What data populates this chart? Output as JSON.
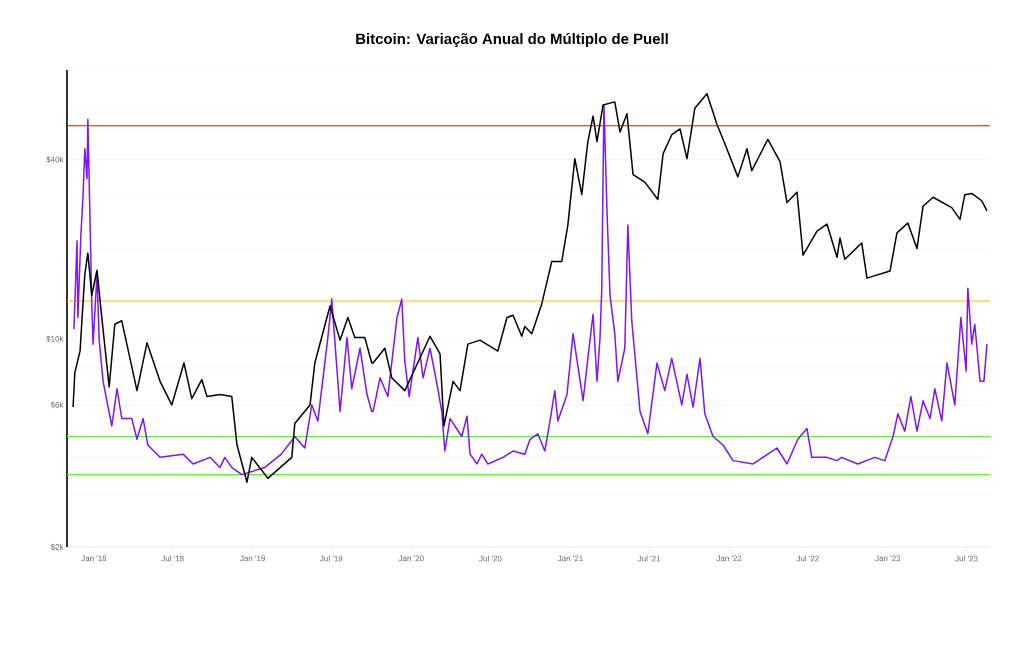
{
  "chart_data": {
    "type": "line",
    "title": "Bitcoin: Variação Anual do Múltiplo de Puell",
    "xlim": [
      "2017-10-31",
      "2023-08-24"
    ],
    "xticks": [
      {
        "value": "2018-01-01",
        "label": "Jan '18"
      },
      {
        "value": "2018-07-01",
        "label": "Jul '18"
      },
      {
        "value": "2019-01-01",
        "label": "Jan '19"
      },
      {
        "value": "2019-07-01",
        "label": "Jul '19"
      },
      {
        "value": "2020-01-01",
        "label": "Jan '20"
      },
      {
        "value": "2020-07-01",
        "label": "Jul '20"
      },
      {
        "value": "2021-01-01",
        "label": "Jan '21"
      },
      {
        "value": "2021-07-01",
        "label": "Jul '21"
      },
      {
        "value": "2022-01-01",
        "label": "Jan '22"
      },
      {
        "value": "2022-07-01",
        "label": "Jul '22"
      },
      {
        "value": "2023-01-01",
        "label": "Jan '23"
      },
      {
        "value": "2023-07-01",
        "label": "Jul '23"
      }
    ],
    "ylim": [
      2000,
      80000
    ],
    "log": "y",
    "grid": "y",
    "yticks": [
      {
        "value": 2000,
        "label": "$2k"
      },
      {
        "value": 3000,
        "label": null
      },
      {
        "value": 4000,
        "label": null
      },
      {
        "value": 5000,
        "label": null
      },
      {
        "value": 6000,
        "label": "$6k"
      },
      {
        "value": 8000,
        "label": null
      },
      {
        "value": 10000,
        "label": "$10k"
      },
      {
        "value": 20000,
        "label": null
      },
      {
        "value": 30000,
        "label": null
      },
      {
        "value": 40000,
        "label": "$40k"
      },
      {
        "value": 50000,
        "label": null
      },
      {
        "value": 60000,
        "label": null
      },
      {
        "value": 80000,
        "label": null
      }
    ],
    "ref_lines": [
      {
        "axis": "y",
        "value": 52000,
        "color": "#ff0000"
      },
      {
        "axis": "y",
        "value": 13400,
        "color": "#ffb800"
      },
      {
        "axis": "y",
        "value": 4700,
        "color": "#66ee33"
      },
      {
        "axis": "y",
        "value": 3500,
        "color": "#66ee33"
      }
    ],
    "series": [
      {
        "color": "#000000",
        "x": [
          "2017-11-14",
          "2017-11-18",
          "2017-11-30",
          "2017-12-11",
          "2017-12-18",
          "2017-12-27",
          "2018-01-08",
          "2018-01-19",
          "2018-02-05",
          "2018-02-18",
          "2018-03-06",
          "2018-04-10",
          "2018-05-03",
          "2018-06-02",
          "2018-06-29",
          "2018-07-27",
          "2018-08-14",
          "2018-09-06",
          "2018-09-18",
          "2018-10-18",
          "2018-11-14",
          "2018-11-26",
          "2018-12-19",
          "2018-12-30",
          "2019-02-05",
          "2019-04-01",
          "2019-04-08",
          "2019-05-13",
          "2019-05-24",
          "2019-06-28",
          "2019-07-21",
          "2019-08-08",
          "2019-08-24",
          "2019-09-16",
          "2019-10-02",
          "2019-10-05",
          "2019-11-01",
          "2019-11-17",
          "2019-12-17",
          "2020-02-13",
          "2020-03-07",
          "2020-03-16",
          "2020-04-06",
          "2020-04-22",
          "2020-05-10",
          "2020-06-07",
          "2020-07-18",
          "2020-08-08",
          "2020-08-22",
          "2020-09-11",
          "2020-09-18",
          "2020-10-04",
          "2020-10-27",
          "2020-11-19",
          "2020-12-12",
          "2020-12-26",
          "2021-01-11",
          "2021-01-27",
          "2021-02-10",
          "2021-02-22",
          "2021-03-03",
          "2021-03-17",
          "2021-04-13",
          "2021-04-25",
          "2021-05-11",
          "2021-05-25",
          "2021-06-21",
          "2021-07-21",
          "2021-08-02",
          "2021-08-22",
          "2021-09-10",
          "2021-09-26",
          "2021-10-14",
          "2021-11-11",
          "2021-12-04",
          "2021-12-18",
          "2022-01-21",
          "2022-02-11",
          "2022-02-22",
          "2022-03-31",
          "2022-04-28",
          "2022-05-14",
          "2022-06-06",
          "2022-06-20",
          "2022-07-22",
          "2022-08-14",
          "2022-09-06",
          "2022-09-13",
          "2022-09-24",
          "2022-11-02",
          "2022-11-14",
          "2023-01-06",
          "2023-01-22",
          "2023-02-16",
          "2023-03-09",
          "2023-03-23",
          "2023-04-15",
          "2023-05-28",
          "2023-06-16",
          "2023-06-27",
          "2023-07-13",
          "2023-08-05",
          "2023-08-17"
        ],
        "values": [
          5900,
          7700,
          9100,
          16500,
          19400,
          14000,
          17000,
          11800,
          6900,
          11200,
          11500,
          6700,
          9700,
          7200,
          6000,
          8300,
          6300,
          7300,
          6400,
          6500,
          6400,
          4400,
          3300,
          4000,
          3400,
          4000,
          5200,
          6000,
          8300,
          12900,
          9900,
          11800,
          10100,
          10100,
          8300,
          8300,
          9300,
          7400,
          6700,
          10200,
          8900,
          5100,
          7200,
          6700,
          9600,
          9900,
          9100,
          11800,
          12000,
          10200,
          11000,
          10400,
          13100,
          18200,
          18200,
          24100,
          40300,
          30500,
          46000,
          56000,
          46000,
          61000,
          62500,
          49500,
          57000,
          35600,
          33600,
          29400,
          41800,
          48500,
          50700,
          40300,
          59500,
          66600,
          52500,
          46800,
          35000,
          43500,
          36700,
          46800,
          39400,
          28700,
          31100,
          19100,
          23000,
          24300,
          18800,
          21800,
          18500,
          21000,
          16000,
          16900,
          22700,
          24500,
          20100,
          27900,
          29900,
          27600,
          25200,
          30500,
          30800,
          29100,
          26900
        ]
      },
      {
        "color": "#7b16ff",
        "x": [
          "2017-11-16",
          "2017-11-23",
          "2017-11-25",
          "2017-12-02",
          "2017-12-07",
          "2017-12-11",
          "2017-12-16",
          "2017-12-18",
          "2017-12-27",
          "2017-12-30",
          "2018-01-08",
          "2018-01-13",
          "2018-01-22",
          "2018-02-11",
          "2018-02-23",
          "2018-03-06",
          "2018-03-29",
          "2018-04-10",
          "2018-04-24",
          "2018-05-05",
          "2018-06-02",
          "2018-07-25",
          "2018-08-17",
          "2018-09-25",
          "2018-10-18",
          "2018-10-29",
          "2018-11-14",
          "2018-12-07",
          "2019-01-29",
          "2019-03-08",
          "2019-04-08",
          "2019-05-01",
          "2019-05-17",
          "2019-05-31",
          "2019-06-23",
          "2019-07-02",
          "2019-07-12",
          "2019-07-21",
          "2019-08-06",
          "2019-08-17",
          "2019-09-05",
          "2019-09-21",
          "2019-10-02",
          "2019-10-05",
          "2019-10-21",
          "2019-11-08",
          "2019-11-29",
          "2019-12-10",
          "2019-12-17",
          "2019-12-27",
          "2020-01-16",
          "2020-01-28",
          "2020-02-13",
          "2020-03-02",
          "2020-03-11",
          "2020-03-18",
          "2020-03-30",
          "2020-04-26",
          "2020-05-08",
          "2020-05-15",
          "2020-05-31",
          "2020-06-11",
          "2020-06-25",
          "2020-07-30",
          "2020-08-22",
          "2020-09-18",
          "2020-09-30",
          "2020-10-18",
          "2020-11-03",
          "2020-11-15",
          "2020-11-26",
          "2020-12-03",
          "2020-12-24",
          "2021-01-07",
          "2021-01-30",
          "2021-02-10",
          "2021-02-22",
          "2021-03-03",
          "2021-03-10",
          "2021-03-14",
          "2021-03-19",
          "2021-03-26",
          "2021-04-02",
          "2021-04-13",
          "2021-04-20",
          "2021-05-06",
          "2021-05-13",
          "2021-05-22",
          "2021-06-10",
          "2021-06-28",
          "2021-07-19",
          "2021-08-06",
          "2021-08-22",
          "2021-09-14",
          "2021-09-26",
          "2021-10-10",
          "2021-10-26",
          "2021-11-06",
          "2021-11-25",
          "2021-12-18",
          "2022-01-10",
          "2022-02-25",
          "2022-04-21",
          "2022-05-14",
          "2022-06-08",
          "2022-06-29",
          "2022-07-10",
          "2022-08-14",
          "2022-09-06",
          "2022-09-17",
          "2022-10-24",
          "2022-12-02",
          "2022-12-25",
          "2023-01-13",
          "2023-01-24",
          "2023-02-09",
          "2023-02-23",
          "2023-03-09",
          "2023-03-23",
          "2023-04-08",
          "2023-04-19",
          "2023-05-05",
          "2023-05-17",
          "2023-06-04",
          "2023-06-18",
          "2023-06-30",
          "2023-07-04",
          "2023-07-13",
          "2023-07-20",
          "2023-08-01",
          "2023-08-10",
          "2023-08-17"
        ],
        "values": [
          10800,
          21300,
          11800,
          22400,
          30500,
          43500,
          34500,
          54600,
          13100,
          9600,
          16500,
          9900,
          7200,
          5100,
          6800,
          5400,
          5400,
          4600,
          5400,
          4400,
          4000,
          4100,
          3800,
          4000,
          3700,
          4000,
          3700,
          3500,
          3700,
          4100,
          4700,
          4300,
          6000,
          5300,
          10100,
          13600,
          8600,
          5700,
          10100,
          6800,
          9300,
          6500,
          5700,
          5700,
          7400,
          6400,
          11800,
          13600,
          8400,
          6400,
          10100,
          7400,
          9300,
          6800,
          5700,
          4200,
          5400,
          4700,
          5500,
          4100,
          3800,
          4100,
          3800,
          4000,
          4200,
          4100,
          4600,
          4800,
          4200,
          5300,
          6700,
          5300,
          6500,
          10400,
          6200,
          8600,
          12100,
          7200,
          10100,
          14800,
          61000,
          26900,
          14000,
          10400,
          7200,
          9300,
          24100,
          11500,
          5700,
          4800,
          8300,
          6700,
          8600,
          6000,
          7600,
          5900,
          8600,
          5600,
          4700,
          4400,
          3900,
          3800,
          4300,
          3800,
          4600,
          5000,
          4000,
          4000,
          3900,
          4000,
          3800,
          4000,
          3900,
          4700,
          5600,
          4900,
          6400,
          4900,
          6200,
          5400,
          6800,
          5300,
          8300,
          6000,
          11800,
          7800,
          14800,
          9600,
          11200,
          7200,
          7200,
          9600
        ]
      }
    ]
  }
}
